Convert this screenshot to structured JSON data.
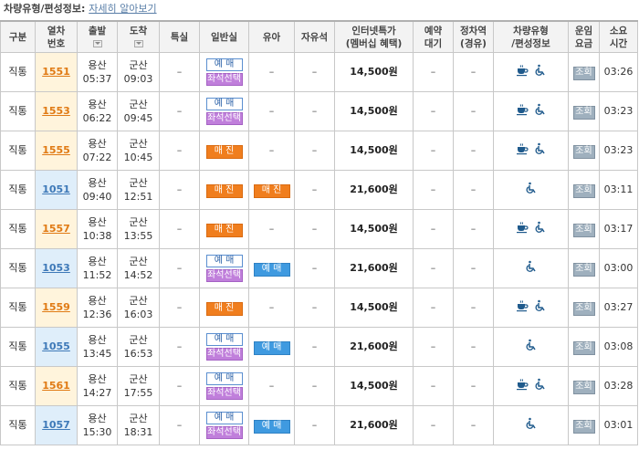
{
  "top": {
    "label": "차량유형/편성정보:",
    "link": "자세히 알아보기"
  },
  "headers": {
    "type": "구분",
    "train_no": [
      "열차",
      "번호"
    ],
    "departure": "출발",
    "arrival": "도착",
    "special": "특실",
    "general": "일반실",
    "infant": "유아",
    "free": "자유석",
    "fare": [
      "인터넷특가",
      "(멤버십 혜택)"
    ],
    "waitlist": [
      "예약",
      "대기"
    ],
    "via": [
      "정차역",
      "(경유)"
    ],
    "vehicle": [
      "차량유형",
      "/편성정보"
    ],
    "fare_inquiry": [
      "운임",
      "요금"
    ],
    "duration": [
      "소요",
      "시간"
    ]
  },
  "labels": {
    "dash": "–",
    "reserve": "예 매",
    "seat_select": "좌석선택",
    "sold_out": "매 진",
    "inquiry": "조회"
  },
  "rows": [
    {
      "type": "직통",
      "train_no": "1551",
      "class": "mugung",
      "dep_station": "용산",
      "dep_time": "05:37",
      "arr_station": "군산",
      "arr_time": "09:03",
      "general": "reserve_seat",
      "infant": "none",
      "fare": "14,500원",
      "vehicle": [
        "cafe",
        "wheelchair"
      ],
      "duration": "03:26"
    },
    {
      "type": "직통",
      "train_no": "1553",
      "class": "mugung",
      "dep_station": "용산",
      "dep_time": "06:22",
      "arr_station": "군산",
      "arr_time": "09:45",
      "general": "reserve_seat",
      "infant": "none",
      "fare": "14,500원",
      "vehicle": [
        "cafe",
        "wheelchair"
      ],
      "duration": "03:23"
    },
    {
      "type": "직통",
      "train_no": "1555",
      "class": "mugung",
      "dep_station": "용산",
      "dep_time": "07:22",
      "arr_station": "군산",
      "arr_time": "10:45",
      "general": "sold",
      "infant": "none",
      "fare": "14,500원",
      "vehicle": [
        "cafe",
        "wheelchair"
      ],
      "duration": "03:23"
    },
    {
      "type": "직통",
      "train_no": "1051",
      "class": "itx",
      "dep_station": "용산",
      "dep_time": "09:40",
      "arr_station": "군산",
      "arr_time": "12:51",
      "general": "sold",
      "infant": "sold",
      "fare": "21,600원",
      "vehicle": [
        "wheelchair"
      ],
      "duration": "03:11"
    },
    {
      "type": "직통",
      "train_no": "1557",
      "class": "mugung",
      "dep_station": "용산",
      "dep_time": "10:38",
      "arr_station": "군산",
      "arr_time": "13:55",
      "general": "sold",
      "infant": "none",
      "fare": "14,500원",
      "vehicle": [
        "cafe",
        "wheelchair"
      ],
      "duration": "03:17"
    },
    {
      "type": "직통",
      "train_no": "1053",
      "class": "itx",
      "dep_station": "용산",
      "dep_time": "11:52",
      "arr_station": "군산",
      "arr_time": "14:52",
      "general": "reserve_seat",
      "infant": "reserve",
      "fare": "21,600원",
      "vehicle": [
        "wheelchair"
      ],
      "duration": "03:00"
    },
    {
      "type": "직통",
      "train_no": "1559",
      "class": "mugung",
      "dep_station": "용산",
      "dep_time": "12:36",
      "arr_station": "군산",
      "arr_time": "16:03",
      "general": "sold",
      "infant": "none",
      "fare": "14,500원",
      "vehicle": [
        "cafe",
        "wheelchair"
      ],
      "duration": "03:27"
    },
    {
      "type": "직통",
      "train_no": "1055",
      "class": "itx",
      "dep_station": "용산",
      "dep_time": "13:45",
      "arr_station": "군산",
      "arr_time": "16:53",
      "general": "reserve_seat",
      "infant": "reserve",
      "fare": "21,600원",
      "vehicle": [
        "wheelchair"
      ],
      "duration": "03:08"
    },
    {
      "type": "직통",
      "train_no": "1561",
      "class": "mugung",
      "dep_station": "용산",
      "dep_time": "14:27",
      "arr_station": "군산",
      "arr_time": "17:55",
      "general": "reserve_seat",
      "infant": "none",
      "fare": "14,500원",
      "vehicle": [
        "cafe",
        "wheelchair"
      ],
      "duration": "03:28"
    },
    {
      "type": "직통",
      "train_no": "1057",
      "class": "itx",
      "dep_station": "용산",
      "dep_time": "15:30",
      "arr_station": "군산",
      "arr_time": "18:31",
      "general": "reserve_seat",
      "infant": "reserve",
      "fare": "21,600원",
      "vehicle": [
        "wheelchair"
      ],
      "duration": "03:01"
    }
  ],
  "colors": {
    "mugung_bg": "#fff4dc",
    "mugung_text": "#e07a14",
    "itx_bg": "#dfeefa",
    "itx_text": "#3e79b8",
    "sold_out": "#f07e1e",
    "reserve": "#3f9ae0",
    "seat_select": "#c07fdb",
    "icon": "#1f5a8c"
  }
}
